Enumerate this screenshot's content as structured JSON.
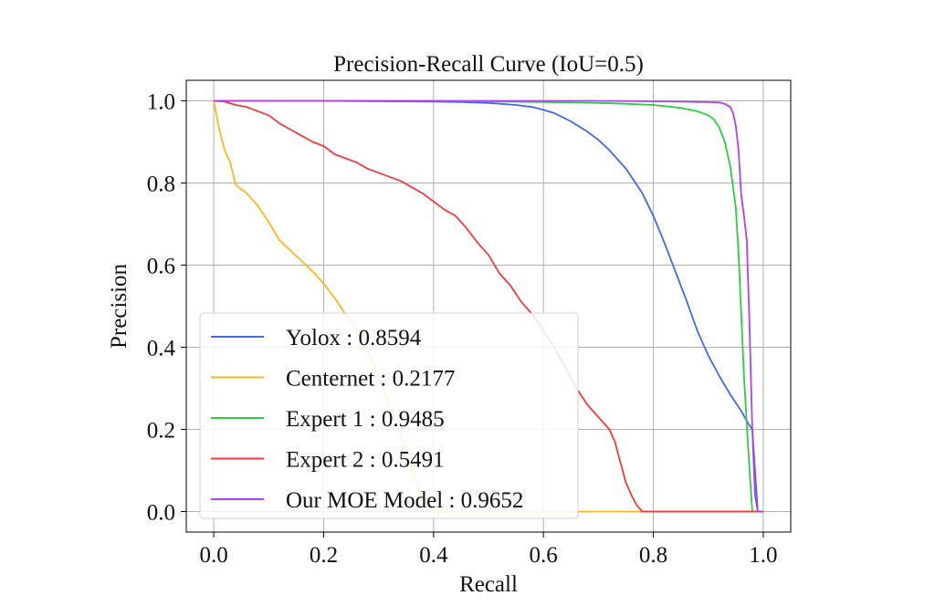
{
  "chart_data": {
    "type": "line",
    "title": "Precision-Recall Curve (IoU=0.5)",
    "xlabel": "Recall",
    "ylabel": "Precision",
    "xlim": [
      -0.05,
      1.05
    ],
    "ylim": [
      -0.05,
      1.05
    ],
    "xticks": [
      0.0,
      0.2,
      0.4,
      0.6,
      0.8,
      1.0
    ],
    "yticks": [
      0.0,
      0.2,
      0.4,
      0.6,
      0.8,
      1.0
    ],
    "xtick_labels": [
      "0.0",
      "0.2",
      "0.4",
      "0.6",
      "0.8",
      "1.0"
    ],
    "ytick_labels": [
      "0.0",
      "0.2",
      "0.4",
      "0.6",
      "0.8",
      "1.0"
    ],
    "grid": true,
    "legend_position": "lower-left",
    "series": [
      {
        "name": "Yolox : 0.8594",
        "color": "#4169e1",
        "x": [
          0.0,
          0.1,
          0.2,
          0.3,
          0.4,
          0.45,
          0.5,
          0.55,
          0.58,
          0.6,
          0.62,
          0.65,
          0.68,
          0.7,
          0.72,
          0.75,
          0.78,
          0.8,
          0.82,
          0.84,
          0.86,
          0.88,
          0.9,
          0.92,
          0.94,
          0.96,
          0.97,
          0.98,
          0.985,
          0.99,
          1.0
        ],
        "y": [
          1.0,
          1.0,
          1.0,
          0.999,
          0.998,
          0.997,
          0.995,
          0.99,
          0.985,
          0.978,
          0.97,
          0.95,
          0.925,
          0.905,
          0.88,
          0.835,
          0.775,
          0.72,
          0.655,
          0.585,
          0.515,
          0.44,
          0.38,
          0.33,
          0.285,
          0.245,
          0.22,
          0.2,
          0.1,
          0.0,
          0.0
        ]
      },
      {
        "name": "Centernet : 0.2177",
        "color": "#ffb61e",
        "x": [
          0.0,
          0.01,
          0.02,
          0.03,
          0.04,
          0.06,
          0.08,
          0.1,
          0.12,
          0.14,
          0.16,
          0.18,
          0.2,
          0.22,
          0.24,
          0.26,
          0.28,
          0.3,
          0.32,
          0.34,
          0.36,
          0.38,
          0.4,
          0.6,
          1.0
        ],
        "y": [
          1.0,
          0.93,
          0.88,
          0.85,
          0.795,
          0.775,
          0.745,
          0.705,
          0.66,
          0.635,
          0.61,
          0.585,
          0.555,
          0.52,
          0.48,
          0.44,
          0.39,
          0.33,
          0.26,
          0.19,
          0.11,
          0.03,
          0.0,
          0.0,
          0.0
        ]
      },
      {
        "name": "Expert 1 : 0.9485",
        "color": "#2ecc40",
        "x": [
          0.0,
          0.2,
          0.4,
          0.6,
          0.7,
          0.75,
          0.8,
          0.85,
          0.88,
          0.9,
          0.91,
          0.92,
          0.93,
          0.94,
          0.95,
          0.955,
          0.96,
          0.965,
          0.97,
          0.975,
          0.98,
          1.0
        ],
        "y": [
          1.0,
          1.0,
          1.0,
          0.997,
          0.995,
          0.993,
          0.99,
          0.983,
          0.975,
          0.965,
          0.955,
          0.935,
          0.9,
          0.84,
          0.74,
          0.63,
          0.48,
          0.33,
          0.21,
          0.1,
          0.0,
          0.0
        ]
      },
      {
        "name": "Expert 2 : 0.5491",
        "color": "#f03c3c",
        "x": [
          0.0,
          0.02,
          0.04,
          0.06,
          0.08,
          0.1,
          0.12,
          0.14,
          0.16,
          0.18,
          0.2,
          0.22,
          0.24,
          0.26,
          0.28,
          0.3,
          0.32,
          0.34,
          0.36,
          0.38,
          0.4,
          0.42,
          0.44,
          0.46,
          0.48,
          0.5,
          0.52,
          0.54,
          0.56,
          0.58,
          0.6,
          0.62,
          0.64,
          0.66,
          0.68,
          0.7,
          0.72,
          0.73,
          0.74,
          0.75,
          0.76,
          0.77,
          0.78,
          1.0
        ],
        "y": [
          1.0,
          0.998,
          0.99,
          0.985,
          0.975,
          0.965,
          0.945,
          0.93,
          0.915,
          0.9,
          0.89,
          0.87,
          0.86,
          0.85,
          0.835,
          0.825,
          0.815,
          0.805,
          0.79,
          0.775,
          0.755,
          0.735,
          0.72,
          0.69,
          0.655,
          0.625,
          0.58,
          0.55,
          0.51,
          0.48,
          0.44,
          0.4,
          0.35,
          0.3,
          0.26,
          0.23,
          0.2,
          0.17,
          0.12,
          0.07,
          0.04,
          0.015,
          0.0,
          0.0
        ]
      },
      {
        "name": "Our MOE Model : 0.9652",
        "color": "#b040f0",
        "x": [
          0.0,
          0.3,
          0.5,
          0.7,
          0.85,
          0.9,
          0.92,
          0.93,
          0.94,
          0.945,
          0.95,
          0.955,
          0.96,
          0.965,
          0.97,
          0.975,
          0.98,
          0.985,
          0.99,
          1.0
        ],
        "y": [
          1.0,
          1.0,
          1.0,
          1.0,
          0.998,
          0.997,
          0.996,
          0.993,
          0.985,
          0.97,
          0.94,
          0.88,
          0.77,
          0.72,
          0.66,
          0.45,
          0.2,
          0.04,
          0.0,
          0.0
        ]
      }
    ]
  }
}
